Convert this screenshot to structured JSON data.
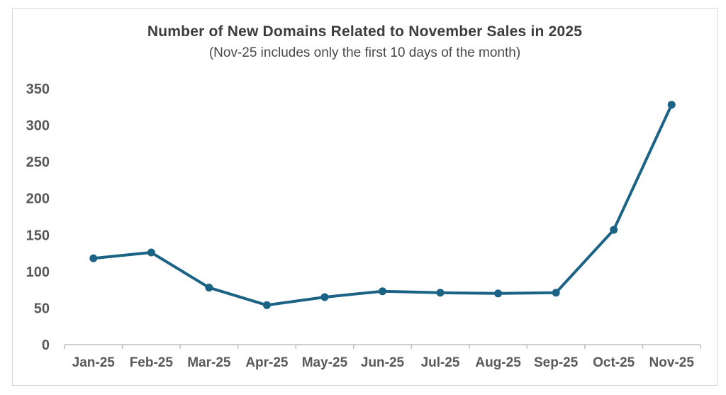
{
  "chart_data": {
    "type": "line",
    "title": "Number of New Domains Related to November Sales in 2025",
    "subtitle": "(Nov-25 includes only the first 10 days of the month)",
    "categories": [
      "Jan-25",
      "Feb-25",
      "Mar-25",
      "Apr-25",
      "May-25",
      "Jun-25",
      "Jul-25",
      "Aug-25",
      "Sep-25",
      "Oct-25",
      "Nov-25"
    ],
    "values": [
      118,
      126,
      78,
      54,
      65,
      73,
      71,
      70,
      71,
      157,
      328
    ],
    "ylim": [
      0,
      350
    ],
    "yticks": [
      0,
      50,
      100,
      150,
      200,
      250,
      300,
      350
    ],
    "grid": false,
    "legend": false,
    "colors": {
      "line": "#1b6385",
      "marker": "#1b6385",
      "axis_line": "#bfbfbf",
      "tick_label": "#595959",
      "title": "#3d3d3d",
      "subtitle": "#484848",
      "frame_border": "#d6d6d6",
      "background": "#ffffff"
    }
  }
}
